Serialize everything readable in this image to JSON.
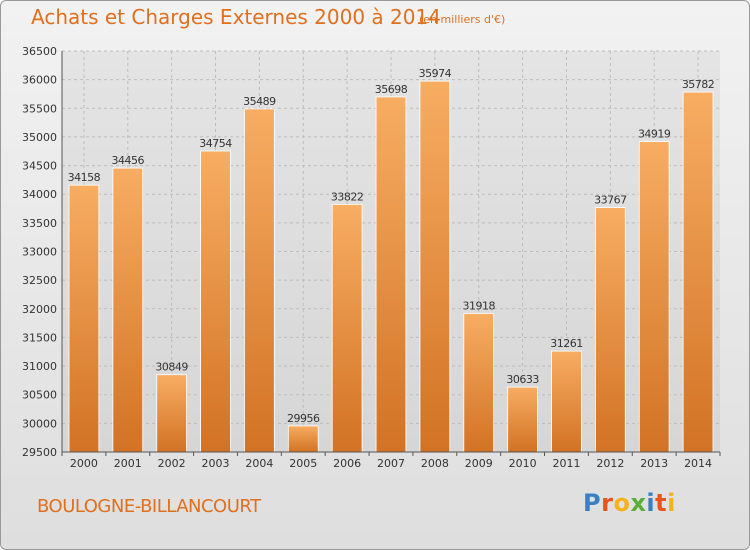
{
  "header": {
    "title": "Achats et Charges Externes 2000 à 2014",
    "subtitle": "(en milliers d'€)"
  },
  "footer": {
    "location": "BOULOGNE-BILLANCOURT",
    "logo": "Proxiti",
    "logo_colors": [
      "#3a7fc2",
      "#e8531e",
      "#f2b41a",
      "#5cae3b",
      "#3a7fc2",
      "#e8531e",
      "#f2b41a"
    ]
  },
  "colors": {
    "bar_light": "#f7ad62",
    "bar_dark": "#d27224",
    "title": "#e0701e",
    "grid": "#bdbdbd"
  },
  "chart_data": {
    "type": "bar",
    "categories": [
      "2000",
      "2001",
      "2002",
      "2003",
      "2004",
      "2005",
      "2006",
      "2007",
      "2008",
      "2009",
      "2010",
      "2011",
      "2012",
      "2013",
      "2014"
    ],
    "values": [
      34158,
      34456,
      30849,
      34754,
      35489,
      29956,
      33822,
      35698,
      35974,
      31918,
      30633,
      31261,
      33767,
      34919,
      35782
    ],
    "ylim": [
      29500,
      36500
    ],
    "yticks": [
      29500,
      30000,
      30500,
      31000,
      31500,
      32000,
      32500,
      33000,
      33500,
      34000,
      34500,
      35000,
      35500,
      36000,
      36500
    ],
    "grid": true,
    "data_labels": true
  }
}
